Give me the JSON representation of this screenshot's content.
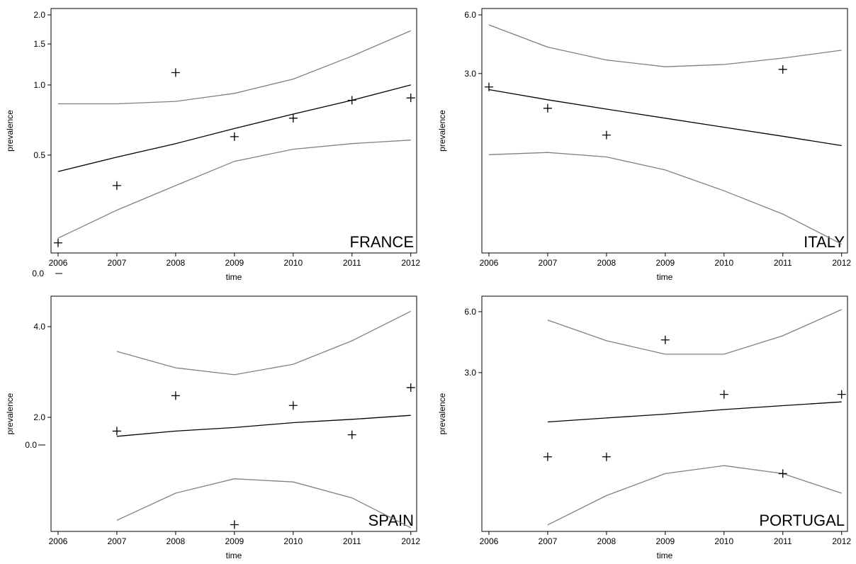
{
  "chart_data": [
    {
      "type": "line",
      "title": "FRANCE",
      "xlabel": "time",
      "ylabel": "prevalence",
      "log_y": true,
      "x": [
        2006,
        2007,
        2008,
        2009,
        2010,
        2011,
        2012
      ],
      "xlim": [
        2005.88,
        2012.1
      ],
      "xticks": [
        2006,
        2007,
        2008,
        2009,
        2010,
        2011,
        2012
      ],
      "ylim": [
        0.19,
        2.13
      ],
      "yticks": [
        {
          "value": 0.5,
          "label": "0.5"
        },
        {
          "value": 1,
          "label": "1.0"
        },
        {
          "value": 1.5,
          "label": "1.5"
        },
        {
          "value": 2,
          "label": "2.0"
        }
      ],
      "series": [
        {
          "color": "#808080",
          "style": "line",
          "values": [
            0.83,
            0.83,
            0.85,
            0.92,
            1.06,
            1.33,
            1.71
          ]
        },
        {
          "color": "#808080",
          "style": "line",
          "values": [
            0.22,
            0.29,
            0.37,
            0.47,
            0.53,
            0.56,
            0.58
          ]
        },
        {
          "color": "#000000",
          "style": "line",
          "values": [
            0.425,
            0.49,
            0.56,
            0.65,
            0.75,
            0.86,
            1.0
          ]
        },
        {
          "color": "#000000",
          "style": "plus",
          "values": [
            0.21,
            0.37,
            1.13,
            0.6,
            0.72,
            0.86,
            0.88
          ]
        }
      ]
    },
    {
      "type": "line",
      "title": "ITALY",
      "xlabel": "time",
      "ylabel": "prevalence",
      "log_y": true,
      "annotation": "0.0",
      "x": [
        2006,
        2007,
        2008,
        2009,
        2010,
        2011,
        2012
      ],
      "xlim": [
        2005.88,
        2012.1
      ],
      "xticks": [
        2006,
        2007,
        2008,
        2009,
        2010,
        2011,
        2012
      ],
      "ylim": [
        0.36,
        6.47
      ],
      "yticks": [
        {
          "value": 3,
          "label": "3.0"
        },
        {
          "value": 6,
          "label": "6.0"
        }
      ],
      "series": [
        {
          "color": "#808080",
          "style": "line",
          "values": [
            5.33,
            4.1,
            3.52,
            3.25,
            3.34,
            3.6,
            3.95
          ]
        },
        {
          "color": "#808080",
          "style": "line",
          "values": [
            1.15,
            1.18,
            1.12,
            0.96,
            0.75,
            0.57,
            0.4
          ]
        },
        {
          "color": "#000000",
          "style": "line",
          "values": [
            2.48,
            2.2,
            1.97,
            1.77,
            1.59,
            1.43,
            1.28
          ]
        },
        {
          "color": "#000000",
          "style": "plus",
          "values": [
            2.56,
            1.99,
            1.45,
            null,
            null,
            3.15,
            null
          ]
        }
      ]
    },
    {
      "type": "line",
      "title": "SPAIN",
      "xlabel": "time",
      "ylabel": "prevalence",
      "log_y": true,
      "annotation": "0.0",
      "x": [
        2006,
        2007,
        2008,
        2009,
        2010,
        2011,
        2012
      ],
      "xlim": [
        2005.88,
        2012.1
      ],
      "xticks": [
        2006,
        2007,
        2008,
        2009,
        2010,
        2011,
        2012
      ],
      "ylim": [
        0.836,
        5.05
      ],
      "yticks": [
        {
          "value": 2,
          "label": "2.0"
        },
        {
          "value": 4,
          "label": "4.0"
        }
      ],
      "series": [
        {
          "color": "#808080",
          "style": "line",
          "values": [
            null,
            3.31,
            2.92,
            2.77,
            3.0,
            3.59,
            4.5
          ]
        },
        {
          "color": "#808080",
          "style": "line",
          "values": [
            null,
            0.91,
            1.12,
            1.25,
            1.22,
            1.08,
            0.86
          ]
        },
        {
          "color": "#000000",
          "style": "line",
          "values": [
            null,
            1.73,
            1.8,
            1.85,
            1.92,
            1.97,
            2.03
          ]
        },
        {
          "color": "#000000",
          "style": "plus",
          "values": [
            null,
            1.8,
            2.36,
            0.88,
            2.19,
            1.75,
            2.51
          ]
        }
      ]
    },
    {
      "type": "line",
      "title": "PORTUGAL",
      "xlabel": "time",
      "ylabel": "prevalence",
      "log_y": true,
      "x": [
        2006,
        2007,
        2008,
        2009,
        2010,
        2011,
        2012
      ],
      "xlim": [
        2005.88,
        2012.1
      ],
      "xticks": [
        2006,
        2007,
        2008,
        2009,
        2010,
        2011,
        2012
      ],
      "ylim": [
        0.492,
        7.16
      ],
      "yticks": [
        {
          "value": 3,
          "label": "3.0"
        },
        {
          "value": 6,
          "label": "6.0"
        }
      ],
      "series": [
        {
          "color": "#808080",
          "style": "line",
          "values": [
            null,
            5.45,
            4.31,
            3.7,
            3.7,
            4.56,
            6.15
          ]
        },
        {
          "color": "#808080",
          "style": "line",
          "values": [
            null,
            0.53,
            0.74,
            0.95,
            1.04,
            0.95,
            0.76
          ]
        },
        {
          "color": "#000000",
          "style": "line",
          "values": [
            null,
            1.71,
            1.79,
            1.87,
            1.97,
            2.06,
            2.15
          ]
        },
        {
          "color": "#000000",
          "style": "plus",
          "values": [
            null,
            1.15,
            1.15,
            4.35,
            2.34,
            0.95,
            2.34
          ]
        }
      ]
    }
  ]
}
